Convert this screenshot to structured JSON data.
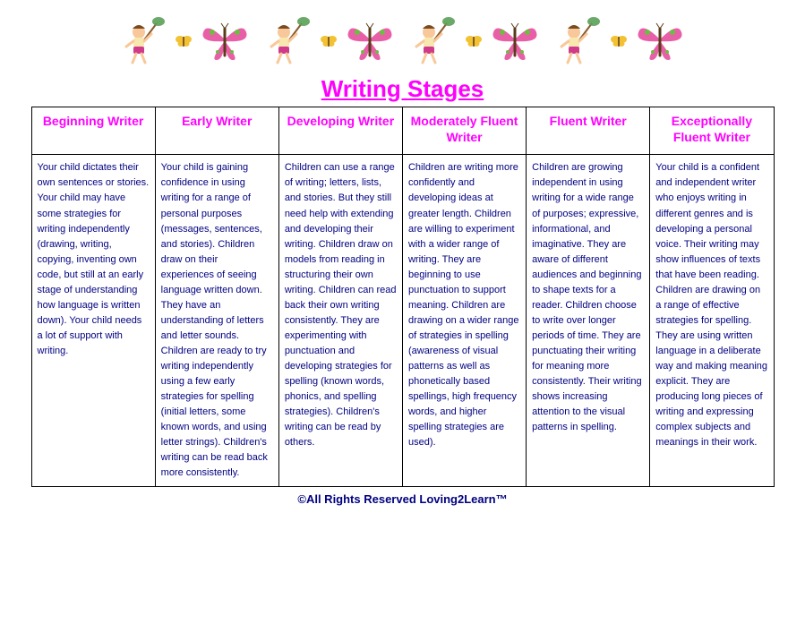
{
  "title": "Writing Stages",
  "title_color": "#ff00ff",
  "header_color": "#ff00ff",
  "body_color": "#000080",
  "footer": "©All Rights Reserved Loving2Learn™",
  "columns": [
    {
      "header": "Beginning Writer",
      "body": "Your child dictates their own sentences or stories.   Your child may have some strategies for writing independently (drawing, writing, copying, inventing own code,  but still at an early stage of understanding how language is written down).   Your child needs a lot of support with writing."
    },
    {
      "header": "Early Writer",
      "body": "Your child is gaining confidence in using writing for a range of personal purposes (messages, sentences, and stories).   Children draw on their experiences of seeing language written down.  They have an understanding of letters and letter sounds.   Children are ready to try writing independently using a few early strategies for spelling (initial letters, some known words, and using letter strings).   Children's writing can be read back more consistently."
    },
    {
      "header": "Developing Writer",
      "body": "Children can use a range of writing; letters, lists, and stories.  But they still need help with extending and developing their writing.  Children draw on models from reading in structuring their own writing.    Children can read back their own writing consistently.  They are experimenting with punctuation and developing strategies for spelling  (known words, phonics, and spelling strategies).  Children's writing can be read by others."
    },
    {
      "header": "Moderately Fluent Writer",
      "body": "Children are writing more confidently and developing ideas at greater length.   Children are willing to experiment with a wider range of writing.  They are beginning to use punctuation to support meaning.  Children are drawing on a wider range of strategies in spelling (awareness of visual patterns as well as phonetically based spellings, high frequency words, and higher spelling strategies are used)."
    },
    {
      "header": "Fluent Writer",
      "body": "Children are growing independent in using writing for a wide range of purposes; expressive, informational, and imaginative.  They are aware of different audiences and beginning to shape texts for a reader.  Children choose to write over longer periods of time.  They are punctuating their writing for meaning more consistently.  Their writing shows increasing attention to the visual patterns in spelling."
    },
    {
      "header": "Exceptionally Fluent Writer",
      "body": "Your child is a confident and independent writer who enjoys writing in different genres and is developing a personal voice.   Their writing may show influences of texts that have been reading.   Children are drawing on a range of effective strategies for spelling.  They are using written language in a deliberate way and making meaning explicit.   They are producing long pieces of writing and expressing complex subjects and meanings in their work."
    }
  ],
  "decor": {
    "repeat": 4,
    "child_colors": {
      "skin": "#f8c89a",
      "net": "#5aa058",
      "handle": "#8a5a2a",
      "hair": "#7a4a20",
      "shorts": "#d03a8a",
      "shirt": "#f8e8b0"
    },
    "butterfly_small_color": "#f2c233",
    "butterfly_big_colors": {
      "wing": "#e85fa8",
      "accent": "#6bbf3f",
      "body": "#5a3a1a"
    }
  }
}
